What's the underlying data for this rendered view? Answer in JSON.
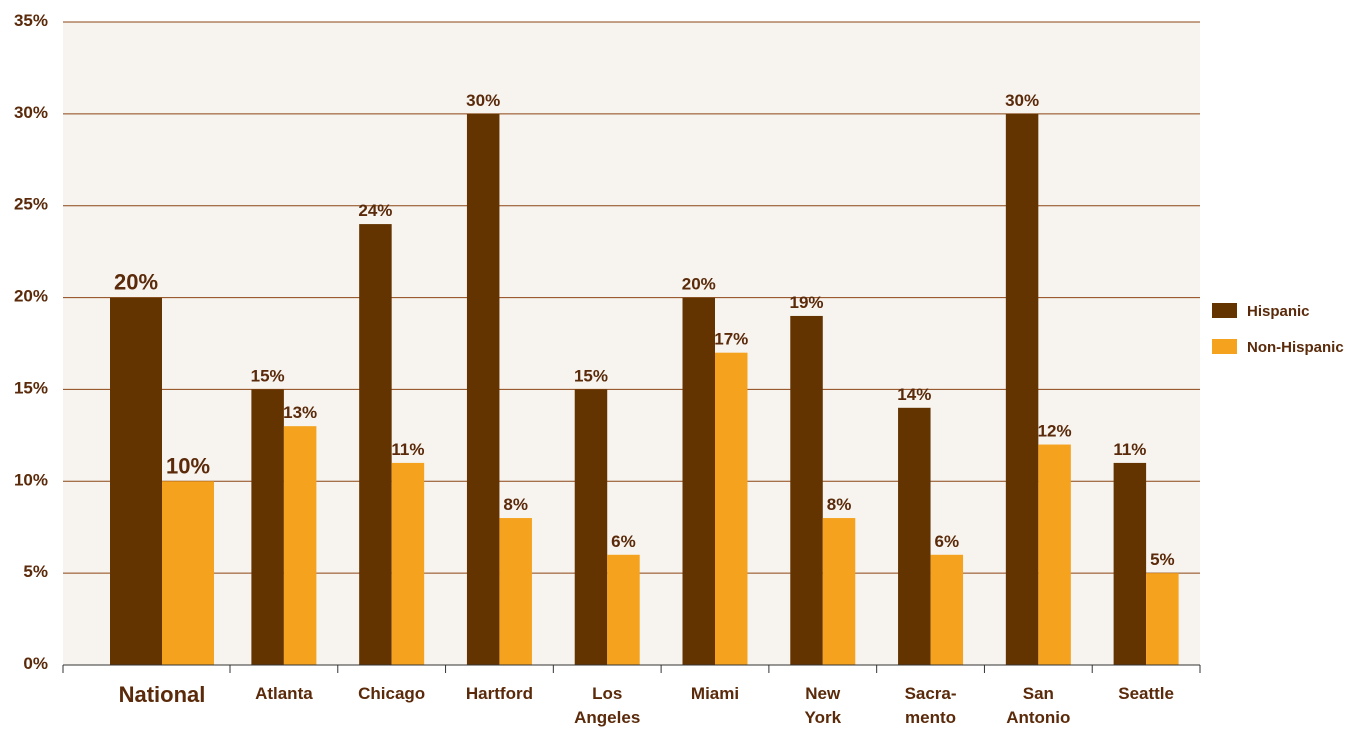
{
  "colors": {
    "hispanic": "#633400",
    "non_hispanic": "#f5a31e",
    "plot_background": "#f7f4ef",
    "grid": "#8b4513",
    "text": "#5a2a0a"
  },
  "chart_data": {
    "type": "bar",
    "categories": [
      "National",
      "Atlanta",
      "Chicago",
      "Hartford",
      "Los Angeles",
      "Miami",
      "New York",
      "Sacra-mento",
      "San Antonio",
      "Seattle"
    ],
    "category_lines": [
      [
        "National"
      ],
      [
        "Atlanta"
      ],
      [
        "Chicago"
      ],
      [
        "Hartford"
      ],
      [
        "Los",
        "Angeles"
      ],
      [
        "Miami"
      ],
      [
        "New",
        "York"
      ],
      [
        "Sacra-",
        "mento"
      ],
      [
        "San",
        "Antonio"
      ],
      [
        "Seattle"
      ]
    ],
    "series": [
      {
        "name": "Hispanic",
        "values": [
          20,
          15,
          24,
          30,
          15,
          20,
          19,
          14,
          30,
          11
        ],
        "labels": [
          "20%",
          "15%",
          "24%",
          "30%",
          "15%",
          "20%",
          "19%",
          "14%",
          "30%",
          "11%"
        ]
      },
      {
        "name": "Non-Hispanic",
        "values": [
          10,
          13,
          11,
          8,
          6,
          17,
          8,
          6,
          12,
          5
        ],
        "labels": [
          "10%",
          "13%",
          "11%",
          "8%",
          "6%",
          "17%",
          "8%",
          "6%",
          "12%",
          "5%"
        ]
      }
    ],
    "title": "",
    "xlabel": "",
    "ylabel": "",
    "ylim": [
      0,
      35
    ],
    "y_ticks": [
      0,
      5,
      10,
      15,
      20,
      25,
      30,
      35
    ],
    "y_tick_labels": [
      "0%",
      "5%",
      "10%",
      "15%",
      "20%",
      "25%",
      "30%",
      "35%"
    ],
    "grid": true,
    "legend": {
      "placement": "right",
      "entries": [
        "Hispanic",
        "Non-Hispanic"
      ]
    }
  }
}
